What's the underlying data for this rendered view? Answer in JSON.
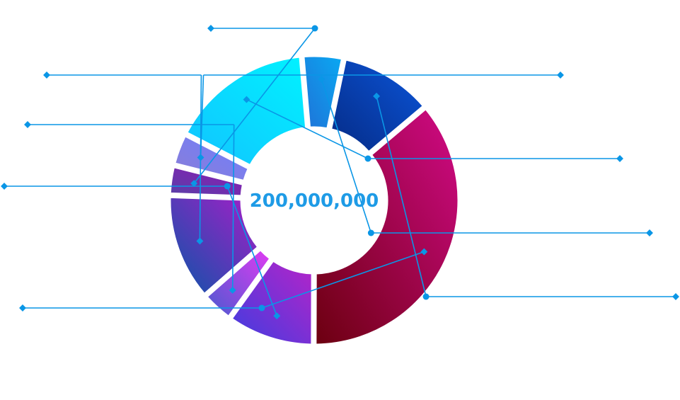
{
  "chart_data": {
    "type": "pie",
    "variant": "donut",
    "center_label": "200,000,000",
    "center_label_color": "#1e9be6",
    "leader_line_color": "#0a96e6",
    "categories": [
      "",
      "",
      "",
      "",
      "",
      "",
      "",
      "",
      "",
      ""
    ],
    "values": [
      3.3,
      3.6,
      15.8,
      4.6,
      10.4,
      35.6,
      9.7,
      3.6,
      11.8,
      0.0
    ],
    "segment_colors": [
      [
        "#5a3fa8",
        "#8e1bb4"
      ],
      [
        "#8a7fd6",
        "#6f7dff"
      ],
      [
        "#12c3ff",
        "#00f2ff"
      ],
      [
        "#1f73d8",
        "#0aa8f2"
      ],
      [
        "#052b86",
        "#0b55d9"
      ],
      [
        "#6c0010",
        "#d10a86"
      ],
      [
        "#3f3de0",
        "#b524c9"
      ],
      [
        "#4b5ad0",
        "#df3bf2"
      ],
      [
        "#0a55a8",
        "#a61ec8"
      ]
    ],
    "legend": "none",
    "grid": false
  }
}
